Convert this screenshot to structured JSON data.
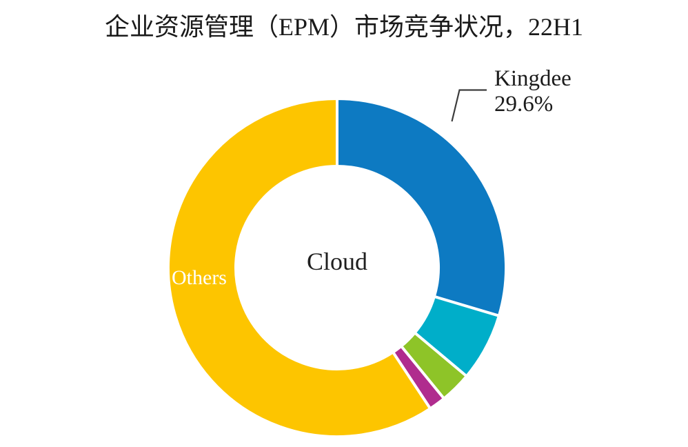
{
  "chart_data": {
    "type": "pie",
    "subtype": "donut",
    "title": "企业资源管理（EPM）市场竞争状况，22H1",
    "center_label": "Cloud",
    "start_angle_deg": 0,
    "direction": "clockwise",
    "inner_radius_ratio": 0.6,
    "gap_color": "#ffffff",
    "background_color": "#ffffff",
    "values_estimated_for_unlabeled": true,
    "slices": [
      {
        "label": "Kingdee",
        "value": 29.6,
        "value_label": "29.6%",
        "color": "#0d7ac2"
      },
      {
        "label": "",
        "value": 6.5,
        "color": "#00aec9"
      },
      {
        "label": "",
        "value": 3.0,
        "color": "#8ec428"
      },
      {
        "label": "",
        "value": 1.6,
        "color": "#b02c8e"
      },
      {
        "label": "Others",
        "value": 59.3,
        "color": "#fdc500"
      }
    ]
  }
}
